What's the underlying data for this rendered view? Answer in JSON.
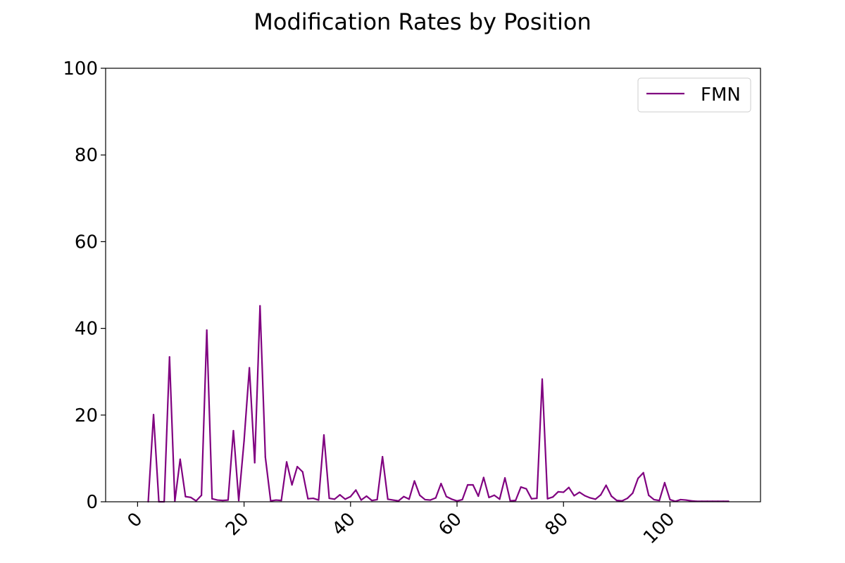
{
  "chart_data": {
    "type": "line",
    "title": "Modification Rates by Position",
    "xlabel": "",
    "ylabel": "",
    "xlim": [
      -6,
      117
    ],
    "ylim": [
      0,
      100
    ],
    "x_ticks": [
      0,
      20,
      40,
      60,
      80,
      100
    ],
    "y_ticks": [
      0,
      20,
      40,
      60,
      80,
      100
    ],
    "x_tick_labels": [
      "0",
      "20",
      "40",
      "60",
      "80",
      "100"
    ],
    "y_tick_labels": [
      "0",
      "20",
      "40",
      "60",
      "80",
      "100"
    ],
    "x_tick_rotation_deg": 45,
    "grid": false,
    "legend_position": "top-right",
    "series": [
      {
        "name": "FMN",
        "color": "#800080",
        "x": [
          2,
          3,
          4,
          5,
          6,
          7,
          8,
          9,
          10,
          11,
          12,
          13,
          14,
          15,
          16,
          17,
          18,
          19,
          20,
          21,
          22,
          23,
          24,
          25,
          26,
          27,
          28,
          29,
          30,
          31,
          32,
          33,
          34,
          35,
          36,
          37,
          38,
          39,
          40,
          41,
          42,
          43,
          44,
          45,
          46,
          47,
          48,
          49,
          50,
          51,
          52,
          53,
          54,
          55,
          56,
          57,
          58,
          59,
          60,
          61,
          62,
          63,
          64,
          65,
          66,
          67,
          68,
          69,
          70,
          71,
          72,
          73,
          74,
          75,
          76,
          77,
          78,
          79,
          80,
          81,
          82,
          83,
          84,
          85,
          86,
          87,
          88,
          89,
          90,
          91,
          92,
          93,
          94,
          95,
          96,
          97,
          98,
          99,
          100,
          101,
          102,
          103,
          104,
          105,
          106,
          107,
          108,
          109,
          110,
          111
        ],
        "y": [
          0,
          20.1,
          0,
          0,
          33.4,
          0.1,
          9.8,
          1.2,
          1.0,
          0.2,
          1.5,
          39.6,
          0.7,
          0.4,
          0.3,
          0.4,
          16.4,
          0.3,
          14.0,
          30.9,
          9.0,
          45.2,
          10.3,
          0.2,
          0.4,
          0.3,
          9.2,
          3.9,
          8.1,
          6.9,
          0.7,
          0.8,
          0.4,
          15.4,
          0.8,
          0.6,
          1.6,
          0.6,
          1.2,
          2.7,
          0.4,
          1.3,
          0.3,
          0.5,
          10.4,
          0.6,
          0.4,
          0.2,
          1.2,
          0.6,
          4.8,
          1.5,
          0.5,
          0.4,
          0.9,
          4.2,
          1.2,
          0.6,
          0.2,
          0.5,
          3.9,
          3.9,
          1.3,
          5.6,
          1.0,
          1.5,
          0.6,
          5.5,
          0.2,
          0.3,
          3.4,
          3.0,
          0.7,
          0.8,
          28.3,
          0.7,
          1.1,
          2.3,
          2.2,
          3.3,
          1.4,
          2.2,
          1.4,
          0.9,
          0.6,
          1.6,
          3.8,
          1.3,
          0.3,
          0.2,
          0.8,
          2.0,
          5.4,
          6.7,
          1.5,
          0.5,
          0.3,
          4.4,
          0.5,
          0.1,
          0.5,
          0.4,
          0.2,
          0.1,
          0.1,
          0.1,
          0.1,
          0.1,
          0.1,
          0.1
        ]
      }
    ]
  }
}
